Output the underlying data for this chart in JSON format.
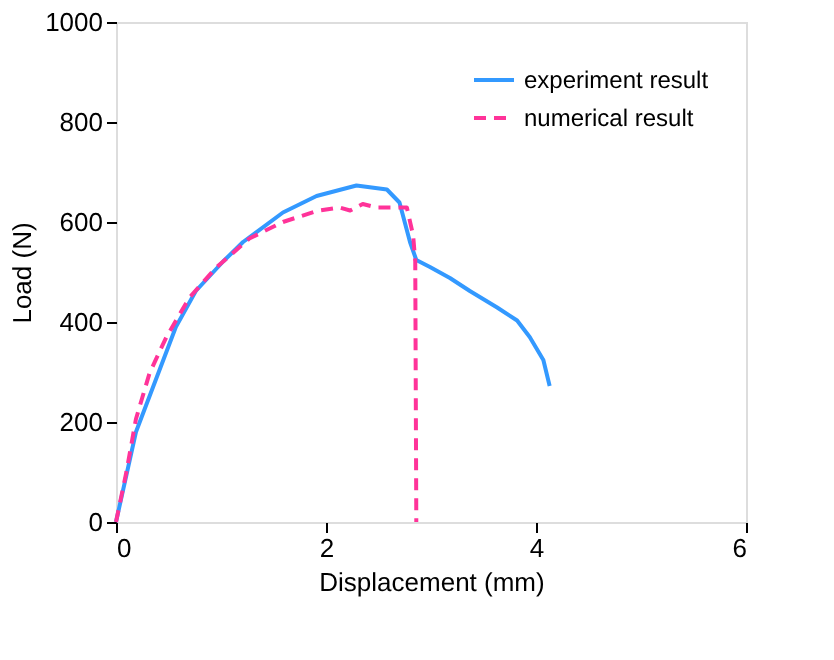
{
  "chart_data": {
    "type": "line",
    "xlabel": "Displacement (mm)",
    "ylabel": "Load (N)",
    "xlim": [
      0,
      6
    ],
    "ylim": [
      0,
      1000
    ],
    "xticks": [
      0,
      2,
      4,
      6
    ],
    "yticks": [
      0,
      200,
      400,
      600,
      800,
      1000
    ],
    "grid": false,
    "legend": "top right",
    "marker": "none",
    "series": [
      {
        "name": "experiment result",
        "color": "#3399ff",
        "line_style": "solid",
        "x": [
          0,
          0.19,
          0.38,
          0.57,
          0.76,
          1.02,
          1.21,
          1.59,
          1.91,
          2.29,
          2.58,
          2.7,
          2.8,
          2.86,
          2.99,
          3.18,
          3.37,
          3.63,
          3.82,
          3.94,
          4.07,
          4.13
        ],
        "values": [
          0,
          180,
          285,
          390,
          462,
          521,
          560,
          619,
          652,
          673,
          665,
          639,
          560,
          524,
          510,
          488,
          462,
          429,
          403,
          370,
          324,
          272
        ]
      },
      {
        "name": "numerical result",
        "color": "#ff3399",
        "line_style": "dashed",
        "x": [
          0,
          0.1,
          0.19,
          0.32,
          0.48,
          0.7,
          0.95,
          1.27,
          1.59,
          1.91,
          2.13,
          2.23,
          2.35,
          2.48,
          2.77,
          2.83,
          2.85,
          2.86
        ],
        "values": [
          0,
          101,
          206,
          298,
          370,
          449,
          508,
          567,
          600,
          622,
          629,
          623,
          636,
          629,
          629,
          573,
          521,
          0
        ]
      }
    ]
  }
}
